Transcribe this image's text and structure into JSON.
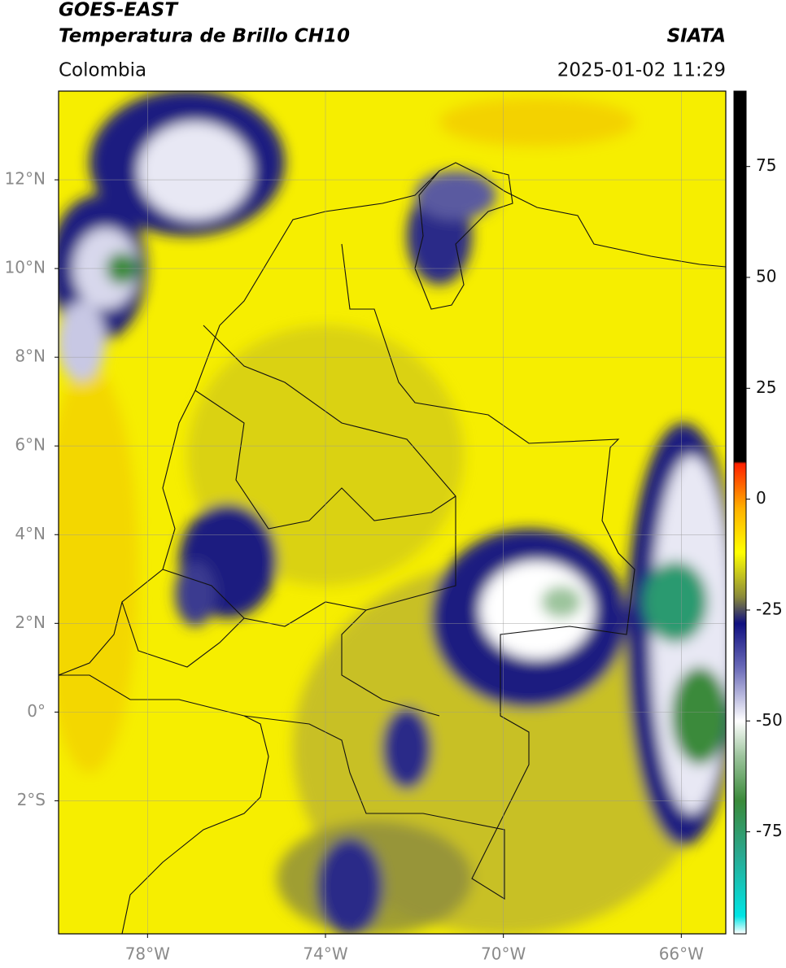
{
  "header": {
    "title": "GOES-EAST",
    "subtitle": "Temperatura de Brillo CH10",
    "source": "SIATA",
    "region": "Colombia",
    "datetime": "2025-01-02 11:29"
  },
  "map": {
    "lonlim": [
      -80,
      -65
    ],
    "latlim": [
      -5,
      14
    ],
    "lat_ticks": [
      {
        "value": 12,
        "label": "12°N"
      },
      {
        "value": 10,
        "label": "10°N"
      },
      {
        "value": 8,
        "label": "8°N"
      },
      {
        "value": 6,
        "label": "6°N"
      },
      {
        "value": 4,
        "label": "4°N"
      },
      {
        "value": 2,
        "label": "2°N"
      },
      {
        "value": 0,
        "label": "0°"
      },
      {
        "value": -2,
        "label": "2°S"
      }
    ],
    "lon_ticks": [
      {
        "value": -78,
        "label": "78°W"
      },
      {
        "value": -74,
        "label": "74°W"
      },
      {
        "value": -70,
        "label": "70°W"
      },
      {
        "value": -66,
        "label": "66°W"
      }
    ],
    "grid": true
  },
  "colorbar": {
    "lim": [
      -98,
      92
    ],
    "ticks": [
      75,
      50,
      25,
      0,
      -25,
      -50,
      -75
    ],
    "stops": [
      {
        "value": -98,
        "color": "#ffffff"
      },
      {
        "value": -94,
        "color": "#00e5e5"
      },
      {
        "value": -80,
        "color": "#2aa88f"
      },
      {
        "value": -68,
        "color": "#3a8a3a"
      },
      {
        "value": -58,
        "color": "#9cc49c"
      },
      {
        "value": -50,
        "color": "#ffffff"
      },
      {
        "value": -38,
        "color": "#6a6ab8"
      },
      {
        "value": -28,
        "color": "#101080"
      },
      {
        "value": -22,
        "color": "#8a8a3a"
      },
      {
        "value": -12,
        "color": "#ffff00"
      },
      {
        "value": -2,
        "color": "#ffb000"
      },
      {
        "value": 8,
        "color": "#ff2000"
      },
      {
        "value": 8.5,
        "color": "#000000"
      },
      {
        "value": 92,
        "color": "#000000"
      }
    ]
  }
}
